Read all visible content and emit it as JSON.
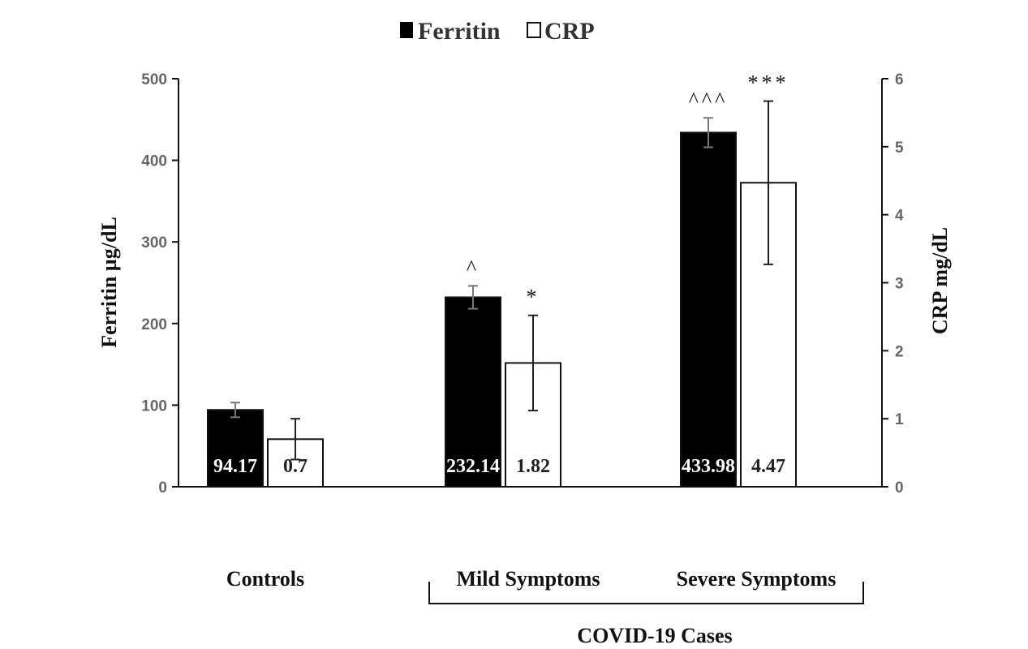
{
  "chart_data": {
    "type": "bar",
    "categories": [
      "Controls",
      "Mild Symptoms",
      "Severe Symptoms"
    ],
    "group_label": "COVID-19  Cases",
    "y_left": {
      "label": "Ferritin µg/dL",
      "range": [
        0,
        500
      ],
      "ticks": [
        "0",
        "100",
        "200",
        "300",
        "400",
        "500"
      ]
    },
    "y_right": {
      "label": "CRP mg/dL",
      "range": [
        0,
        6
      ],
      "ticks": [
        "0",
        "1",
        "2",
        "3",
        "4",
        "5",
        "6"
      ]
    },
    "legend_position": "top-center",
    "series": [
      {
        "name": "Ferritin",
        "axis": "left",
        "color": "#000000",
        "values": [
          94.17,
          232.14,
          433.98
        ],
        "value_labels": [
          "94.17",
          "232.14",
          "433.98"
        ],
        "errors": [
          9,
          14,
          18
        ],
        "significance": [
          "",
          "^",
          "^^^"
        ]
      },
      {
        "name": "CRP",
        "axis": "right",
        "color": "#ffffff",
        "values": [
          0.7,
          1.82,
          4.47
        ],
        "value_labels": [
          "0.7",
          "1.82",
          "4.47"
        ],
        "errors": [
          0.3,
          0.7,
          1.2
        ],
        "significance": [
          "",
          "*",
          "***"
        ]
      }
    ],
    "grid": false
  }
}
